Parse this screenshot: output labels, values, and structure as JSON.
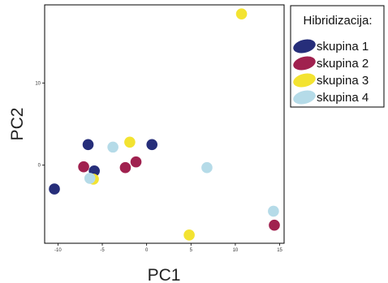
{
  "chart_data": {
    "type": "scatter",
    "xlabel": "PC1",
    "ylabel": "PC2",
    "xlim": [
      -11.5,
      15.5
    ],
    "ylim": [
      -9.5,
      19.5
    ],
    "x_ticks": [
      -10,
      -5,
      0,
      5,
      10,
      15
    ],
    "y_ticks": [
      0,
      10
    ],
    "grid": false,
    "legend": {
      "title": "Hibridizacija:",
      "placement": "top-right-outside"
    },
    "series": [
      {
        "name": "skupina 1",
        "color": "#262e7a",
        "points": [
          {
            "x": -10.4,
            "y": -2.9
          },
          {
            "x": -6.6,
            "y": 2.5
          },
          {
            "x": -5.9,
            "y": -0.7
          },
          {
            "x": 0.6,
            "y": 2.5
          }
        ]
      },
      {
        "name": "skupina 2",
        "color": "#a0214f",
        "points": [
          {
            "x": -7.1,
            "y": -0.2
          },
          {
            "x": -2.4,
            "y": -0.3
          },
          {
            "x": -1.2,
            "y": 0.4
          },
          {
            "x": 14.4,
            "y": -7.3
          }
        ]
      },
      {
        "name": "skupina 3",
        "color": "#f3e331",
        "points": [
          {
            "x": -6.0,
            "y": -1.7
          },
          {
            "x": -1.9,
            "y": 2.8
          },
          {
            "x": 4.8,
            "y": -8.5
          },
          {
            "x": 10.7,
            "y": 18.4
          }
        ]
      },
      {
        "name": "skupina 4",
        "color": "#b5dbe8",
        "points": [
          {
            "x": -6.4,
            "y": -1.6
          },
          {
            "x": -3.8,
            "y": 2.2
          },
          {
            "x": 6.8,
            "y": -0.3
          },
          {
            "x": 14.3,
            "y": -5.6
          }
        ]
      }
    ]
  }
}
